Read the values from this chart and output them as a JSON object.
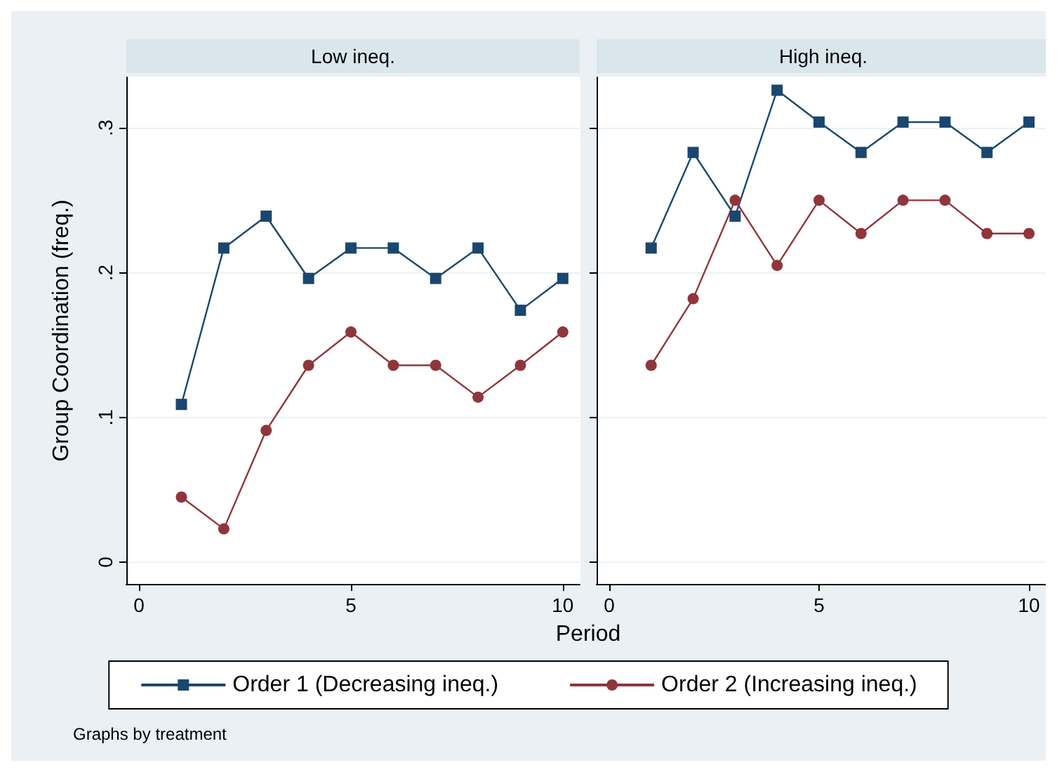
{
  "chart_data": [
    {
      "type": "line",
      "title": "Low ineq.",
      "xlabel": "Period",
      "ylabel": "Group Coordination (freq.)",
      "x": [
        1,
        2,
        3,
        4,
        5,
        6,
        7,
        8,
        9,
        10
      ],
      "xlim": [
        -0.3,
        10.4
      ],
      "xticks": [
        0,
        5,
        10
      ],
      "ylim": [
        -0.015,
        0.335
      ],
      "yticks": [
        {
          "value": 0,
          "label": "0"
        },
        {
          "value": 0.1,
          "label": ".1"
        },
        {
          "value": 0.2,
          "label": ".2"
        },
        {
          "value": 0.3,
          "label": ".3"
        }
      ],
      "grid": "y",
      "legend": "bottom",
      "annotations": [
        "Graphs by treatment"
      ],
      "series": [
        {
          "name": "Order 1 (Decreasing ineq.)",
          "color": "#1a476f",
          "marker": "square",
          "values": [
            0.109,
            0.217,
            0.239,
            0.196,
            0.217,
            0.217,
            0.196,
            0.217,
            0.174,
            0.196
          ]
        },
        {
          "name": "Order 2 (Increasing ineq.)",
          "color": "#90353b",
          "marker": "circle",
          "values": [
            0.045,
            0.023,
            0.091,
            0.136,
            0.159,
            0.136,
            0.136,
            0.114,
            0.136,
            0.159
          ]
        }
      ]
    },
    {
      "type": "line",
      "title": "High ineq.",
      "x": [
        1,
        2,
        3,
        4,
        5,
        6,
        7,
        8,
        9,
        10
      ],
      "xlim": [
        -0.3,
        10.4
      ],
      "xticks": [
        0,
        5,
        10
      ],
      "ylim": [
        -0.015,
        0.335
      ],
      "yticks": [
        {
          "value": 0,
          "label": null
        },
        {
          "value": 0.1,
          "label": null
        },
        {
          "value": 0.2,
          "label": null
        },
        {
          "value": 0.3,
          "label": null
        }
      ],
      "grid": "y",
      "tick_labels": "x",
      "series": [
        {
          "color": "#1a476f",
          "marker": "square",
          "values": [
            0.217,
            0.283,
            0.239,
            0.326,
            0.304,
            0.283,
            0.304,
            0.304,
            0.283,
            0.304
          ]
        },
        {
          "color": "#90353b",
          "marker": "circle",
          "values": [
            0.136,
            0.182,
            0.25,
            0.205,
            0.25,
            0.227,
            0.25,
            0.25,
            0.227,
            0.227
          ]
        }
      ]
    }
  ]
}
